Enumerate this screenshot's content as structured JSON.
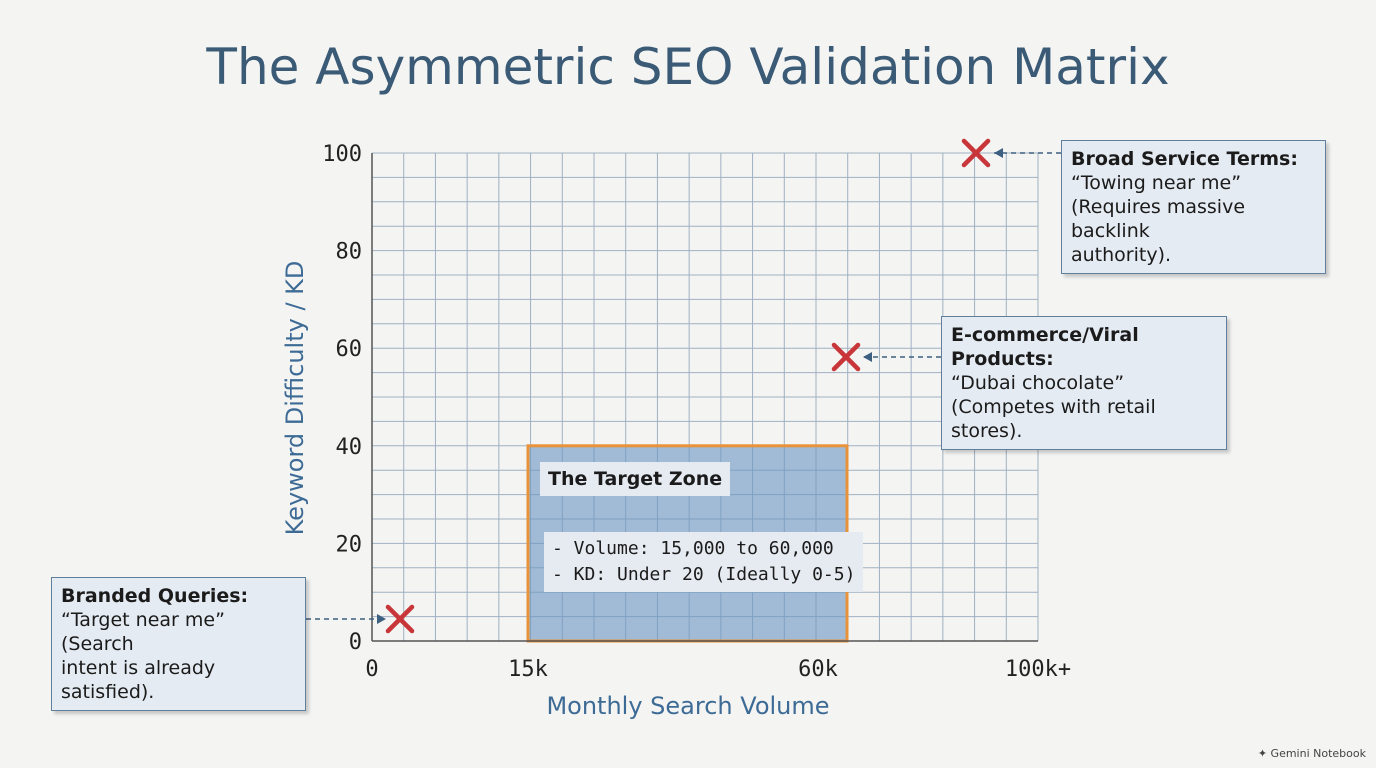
{
  "title": "The Asymmetric SEO Validation Matrix",
  "chart_data": {
    "type": "scatter",
    "xlabel": "Monthly Search Volume",
    "ylabel": "Keyword Difficulty / KD",
    "x_tick_labels": [
      "0",
      "15k",
      "60k",
      "100k+"
    ],
    "y_ticks": [
      0,
      20,
      40,
      60,
      80,
      100
    ],
    "ylim": [
      0,
      100
    ],
    "grid": true,
    "target_zone": {
      "label": "The Target Zone",
      "details": [
        "- Volume: 15,000 to 60,000",
        "- KD: Under 20 (Ideally 0-5)"
      ],
      "x_range": [
        "15k",
        "60k"
      ],
      "y_range": [
        0,
        40
      ],
      "fill_color": "#6e98c4",
      "border_color": "#e8923a"
    },
    "points": [
      {
        "label": "Branded Queries:",
        "volume": "~1k",
        "kd": 4,
        "color": "#c8363a"
      },
      {
        "label": "E-commerce/Viral Products:",
        "volume": "~60k",
        "kd": 58,
        "color": "#c8363a"
      },
      {
        "label": "Broad Service Terms:",
        "volume": "~90k",
        "kd": 100,
        "color": "#c8363a"
      }
    ]
  },
  "callouts": {
    "broad": {
      "title": "Broad Service Terms:",
      "line1": "“Towing near me”",
      "line2": "(Requires massive backlink",
      "line3": "authority)."
    },
    "ecommerce": {
      "title": "E-commerce/Viral Products:",
      "line1": "“Dubai chocolate”",
      "line2": "(Competes with retail stores)."
    },
    "branded": {
      "title": "Branded Queries:",
      "line1": "“Target near me” (Search",
      "line2": "intent is already satisfied)."
    }
  },
  "branding": "Gemini Notebook"
}
